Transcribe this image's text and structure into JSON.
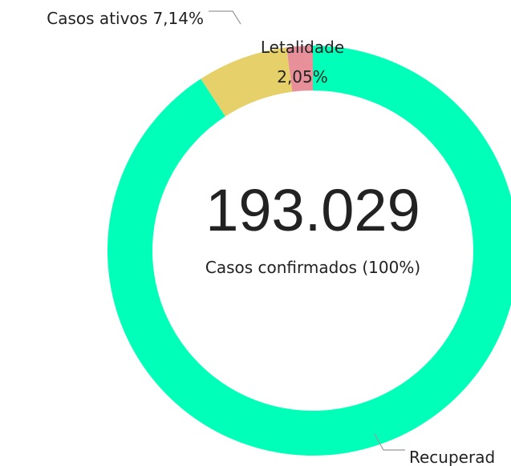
{
  "chart_data": {
    "type": "donut",
    "center_value": "193.029",
    "center_label": "Casos confirmados (100%)",
    "categories": [
      "Letalidade",
      "Casos ativos",
      "Recuperad"
    ],
    "values": [
      2.05,
      7.14,
      90.81
    ],
    "value_labels": [
      "2,05%",
      "7,14%",
      null
    ],
    "colors": [
      "#e8909a",
      "#e6d06a",
      "#00ffb9"
    ]
  }
}
